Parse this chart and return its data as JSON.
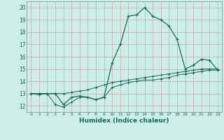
{
  "xlabel": "Humidex (Indice chaleur)",
  "bg_color": "#cceee8",
  "grid_color": "#c8a8a8",
  "line_color": "#1a6b5a",
  "xlim": [
    -0.5,
    23.5
  ],
  "ylim": [
    11.5,
    20.5
  ],
  "xticks": [
    0,
    1,
    2,
    3,
    4,
    5,
    6,
    7,
    8,
    9,
    10,
    11,
    12,
    13,
    14,
    15,
    16,
    17,
    18,
    19,
    20,
    21,
    22,
    23
  ],
  "yticks": [
    12,
    13,
    14,
    15,
    16,
    17,
    18,
    19,
    20
  ],
  "series1_x": [
    0,
    1,
    2,
    3,
    4,
    5,
    6,
    7,
    8,
    9,
    10,
    11,
    12,
    13,
    14,
    15,
    16,
    17,
    18,
    19,
    20,
    21,
    22,
    23
  ],
  "series1_y": [
    13.0,
    13.0,
    13.0,
    13.0,
    12.1,
    12.7,
    12.8,
    12.7,
    12.5,
    12.7,
    15.5,
    17.0,
    19.3,
    19.4,
    20.0,
    19.3,
    19.0,
    18.5,
    17.4,
    15.0,
    15.3,
    15.8,
    15.7,
    14.9
  ],
  "series2_x": [
    0,
    1,
    2,
    3,
    4,
    5,
    6,
    7,
    8,
    9,
    10,
    11,
    12,
    13,
    14,
    15,
    16,
    17,
    18,
    19,
    20,
    21,
    22,
    23
  ],
  "series2_y": [
    13.0,
    13.0,
    13.0,
    13.0,
    13.0,
    13.1,
    13.2,
    13.3,
    13.5,
    13.7,
    13.9,
    14.0,
    14.1,
    14.2,
    14.3,
    14.4,
    14.5,
    14.6,
    14.7,
    14.8,
    14.9,
    15.0,
    15.0,
    15.0
  ],
  "series3_x": [
    0,
    1,
    2,
    3,
    4,
    5,
    6,
    7,
    8,
    9,
    10,
    11,
    12,
    13,
    14,
    15,
    16,
    17,
    18,
    19,
    20,
    21,
    22,
    23
  ],
  "series3_y": [
    13.0,
    12.9,
    13.0,
    12.1,
    11.9,
    12.3,
    12.7,
    12.7,
    12.5,
    12.7,
    13.5,
    13.7,
    13.9,
    14.0,
    14.1,
    14.1,
    14.2,
    14.3,
    14.5,
    14.6,
    14.7,
    14.8,
    14.9,
    14.9
  ]
}
